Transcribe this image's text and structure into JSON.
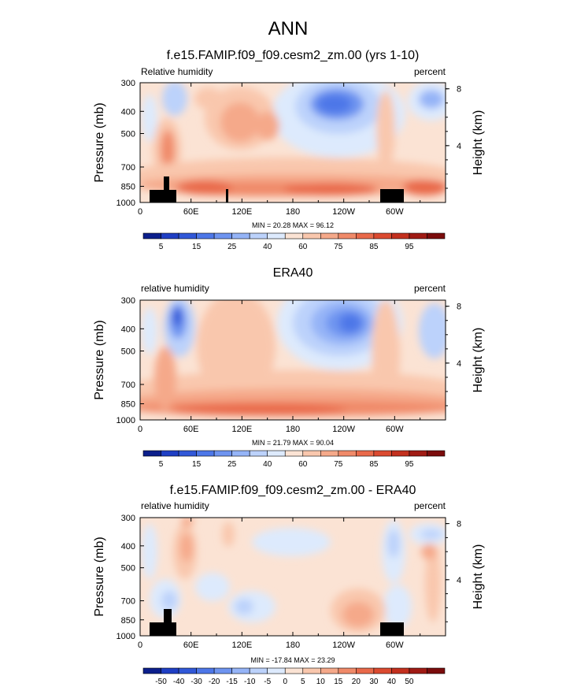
{
  "figure_title": "ANN",
  "colors": {
    "abs_scale": [
      "#0c1f8c",
      "#1f3fc4",
      "#3158d8",
      "#4d77e8",
      "#6e94f0",
      "#95b4f7",
      "#bcd2fb",
      "#ddeafd",
      "#fbe3d4",
      "#f9c7ad",
      "#f5a98a",
      "#f08a69",
      "#e9694a",
      "#db4a30",
      "#c3301e",
      "#a01b14",
      "#7b0c0c"
    ],
    "diff_scale": [
      "#0c1f8c",
      "#1f3fc4",
      "#3158d8",
      "#4d77e8",
      "#6e94f0",
      "#95b4f7",
      "#bcd2fb",
      "#ddeafd",
      "#fbe3d4",
      "#f9c7ad",
      "#f5a98a",
      "#f08a69",
      "#e9694a",
      "#db4a30",
      "#c3301e",
      "#a01b14",
      "#7b0c0c"
    ],
    "terrain": "#000000"
  },
  "chart_data": [
    {
      "type": "heatmap",
      "title": "f.e15.FAMIP.f09_f09.cesm2_zm.00 (yrs 1-10)",
      "left_label": "Relative humidity",
      "right_label": "percent",
      "ylabel": "Pressure (mb)",
      "y2label": "Height (km)",
      "xticks": [
        "0",
        "60E",
        "120E",
        "180",
        "120W",
        "60W"
      ],
      "yticks": [
        "300",
        "400",
        "500",
        "700",
        "850",
        "1000"
      ],
      "y2ticks": [
        "8",
        "4"
      ],
      "stats": "MIN = 20.28   MAX = 96.12",
      "colorbar_labels": [
        "5",
        "15",
        "25",
        "40",
        "60",
        "75",
        "85",
        "95"
      ],
      "min": 20.28,
      "max": 96.12,
      "scale": "abs_scale"
    },
    {
      "type": "heatmap",
      "title": "ERA40",
      "left_label": "relative humidity",
      "right_label": "percent",
      "ylabel": "Pressure (mb)",
      "y2label": "Height (km)",
      "xticks": [
        "0",
        "60E",
        "120E",
        "180",
        "120W",
        "60W"
      ],
      "yticks": [
        "300",
        "400",
        "500",
        "700",
        "850",
        "1000"
      ],
      "y2ticks": [
        "8",
        "4"
      ],
      "stats": "MIN = 21.79   MAX = 90.04",
      "colorbar_labels": [
        "5",
        "15",
        "25",
        "40",
        "60",
        "75",
        "85",
        "95"
      ],
      "min": 21.79,
      "max": 90.04,
      "scale": "abs_scale"
    },
    {
      "type": "heatmap",
      "title": "f.e15.FAMIP.f09_f09.cesm2_zm.00 - ERA40",
      "left_label": "relative humidity",
      "right_label": "percent",
      "ylabel": "Pressure (mb)",
      "y2label": "Height (km)",
      "xticks": [
        "0",
        "60E",
        "120E",
        "180",
        "120W",
        "60W"
      ],
      "yticks": [
        "300",
        "400",
        "500",
        "700",
        "850",
        "1000"
      ],
      "y2ticks": [
        "8",
        "4"
      ],
      "stats": "MIN = -17.84   MAX = 23.29",
      "colorbar_labels": [
        "-50",
        "-40",
        "-30",
        "-20",
        "-15",
        "-10",
        "-5",
        "0",
        "5",
        "10",
        "15",
        "20",
        "30",
        "40",
        "50"
      ],
      "min": -17.84,
      "max": 23.29,
      "scale": "diff_scale"
    }
  ]
}
